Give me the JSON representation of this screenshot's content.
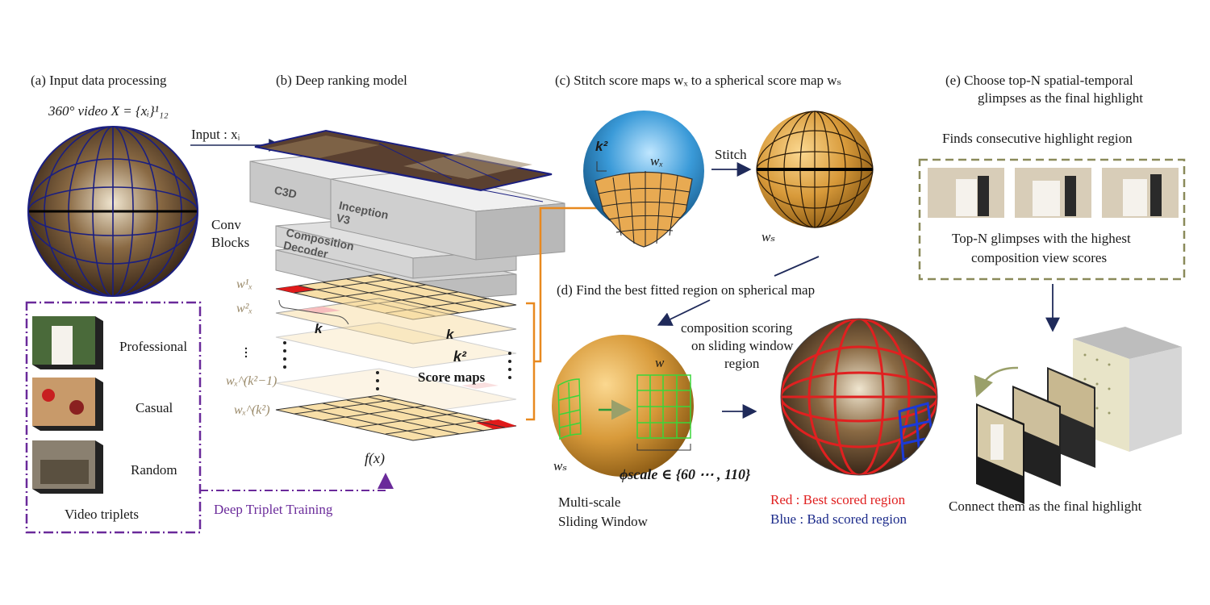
{
  "panels": {
    "a": {
      "title": "(a) Input data processing",
      "video_label": "360° video X = {xᵢ}¹₁₂",
      "input_label": "Input : xᵢ"
    },
    "b": {
      "title": "(b) Deep ranking model",
      "blocks": {
        "c3d": "C3D",
        "inception": "Inception V3",
        "decoder": "Composition Decoder",
        "conv": "Conv\nBlocks"
      },
      "score_labels": [
        "w¹ₓ",
        "w²ₓ",
        "wₓ^(k²−1)",
        "wₓ^(k²)"
      ],
      "k": "k",
      "k2": "k²",
      "score_maps": "Score maps",
      "fx": "f(x)"
    },
    "c": {
      "title": "(c) Stitch score maps wₓ to a spherical score map wₛ",
      "stitch": "Stitch",
      "k2": "k²",
      "wx": "wₓ",
      "ws": "wₛ"
    },
    "d": {
      "title": "(d) Find the best fitted region on spherical map",
      "scoring": [
        "composition scoring",
        "on sliding window",
        "region"
      ],
      "w": "w",
      "ws": "wₛ",
      "phi": "ϕscale ∈ {60 ⋯ , 110}",
      "multiscale": [
        "Multi-scale",
        "Sliding Window"
      ],
      "legend": {
        "red": "Red  : Best scored region",
        "blue": "Blue : Bad scored region"
      }
    },
    "e": {
      "title": [
        "(e) Choose top-N spatial-temporal",
        "glimpses as the final highlight"
      ],
      "consecutive": "Finds consecutive highlight region",
      "topn": [
        "Top-N glimpses with the highest",
        "composition view scores"
      ],
      "connect": "Connect them as the final highlight"
    },
    "triplets": {
      "items": [
        "Professional",
        "Casual",
        "Random"
      ],
      "caption": "Video triplets",
      "training": "Deep Triplet Training"
    }
  }
}
